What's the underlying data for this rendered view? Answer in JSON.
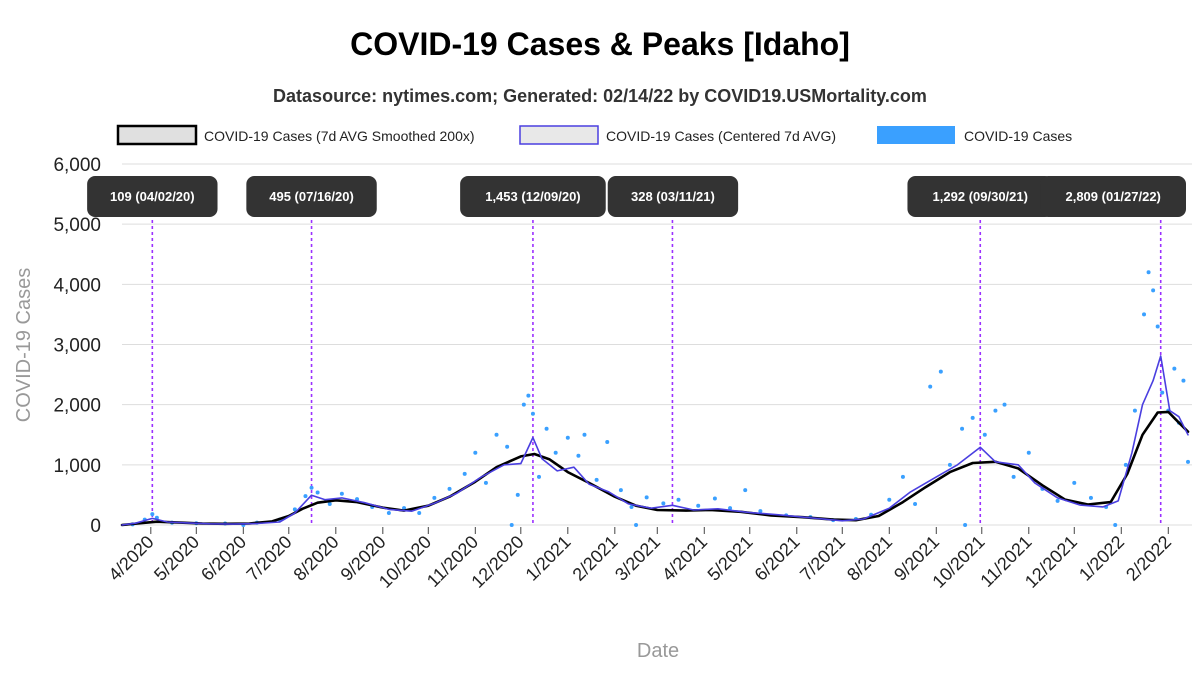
{
  "chart_data": {
    "type": "line",
    "title": "COVID-19 Cases & Peaks [Idaho]",
    "subtitle": "Datasource: nytimes.com; Generated: 02/14/22 by COVID19.USMortality.com",
    "xlabel": "Date",
    "ylabel": "COVID-19 Cases",
    "ylim": [
      0,
      6000
    ],
    "yticks": [
      "0",
      "1,000",
      "2,000",
      "3,000",
      "4,000",
      "5,000",
      "6,000"
    ],
    "xlim": [
      "2020-03-13",
      "2022-02-14"
    ],
    "xticks": [
      {
        "date": "2020-04-01",
        "label": "4/2020"
      },
      {
        "date": "2020-05-01",
        "label": "5/2020"
      },
      {
        "date": "2020-06-01",
        "label": "6/2020"
      },
      {
        "date": "2020-07-01",
        "label": "7/2020"
      },
      {
        "date": "2020-08-01",
        "label": "8/2020"
      },
      {
        "date": "2020-09-01",
        "label": "9/2020"
      },
      {
        "date": "2020-10-01",
        "label": "10/2020"
      },
      {
        "date": "2020-11-01",
        "label": "11/2020"
      },
      {
        "date": "2020-12-01",
        "label": "12/2020"
      },
      {
        "date": "2021-01-01",
        "label": "1/2021"
      },
      {
        "date": "2021-02-01",
        "label": "2/2021"
      },
      {
        "date": "2021-03-01",
        "label": "3/2021"
      },
      {
        "date": "2021-04-01",
        "label": "4/2021"
      },
      {
        "date": "2021-05-01",
        "label": "5/2021"
      },
      {
        "date": "2021-06-01",
        "label": "6/2021"
      },
      {
        "date": "2021-07-01",
        "label": "7/2021"
      },
      {
        "date": "2021-08-01",
        "label": "8/2021"
      },
      {
        "date": "2021-09-01",
        "label": "9/2021"
      },
      {
        "date": "2021-10-01",
        "label": "10/2021"
      },
      {
        "date": "2021-11-01",
        "label": "11/2021"
      },
      {
        "date": "2021-12-01",
        "label": "12/2021"
      },
      {
        "date": "2022-01-01",
        "label": "1/2022"
      },
      {
        "date": "2022-02-01",
        "label": "2/2022"
      }
    ],
    "grid": "horizontal",
    "legend": {
      "placement": "top",
      "entries": [
        {
          "label": "COVID-19 Cases (7d AVG Smoothed 200x)",
          "color": "#000000"
        },
        {
          "label": "COVID-19 Cases (Centered 7d AVG)",
          "color": "#4a3fe0"
        },
        {
          "label": "COVID-19 Cases",
          "color": "#3aa0ff"
        }
      ]
    },
    "peaks": [
      {
        "date": "2020-04-02",
        "label": "109 (04/02/20)"
      },
      {
        "date": "2020-07-16",
        "label": "495 (07/16/20)"
      },
      {
        "date": "2020-12-09",
        "label": "1,453 (12/09/20)"
      },
      {
        "date": "2021-03-11",
        "label": "328 (03/11/21)"
      },
      {
        "date": "2021-09-30",
        "label": "1,292 (09/30/21)"
      },
      {
        "date": "2022-01-27",
        "label": "2,809 (01/27/22)"
      }
    ],
    "series": [
      {
        "key": "smoothed",
        "style": "line",
        "color": "#000000",
        "points": [
          [
            "2020-03-13",
            0
          ],
          [
            "2020-03-25",
            30
          ],
          [
            "2020-04-05",
            55
          ],
          [
            "2020-04-20",
            40
          ],
          [
            "2020-05-05",
            25
          ],
          [
            "2020-05-20",
            20
          ],
          [
            "2020-06-05",
            25
          ],
          [
            "2020-06-20",
            60
          ],
          [
            "2020-07-01",
            150
          ],
          [
            "2020-07-10",
            270
          ],
          [
            "2020-07-20",
            370
          ],
          [
            "2020-08-01",
            410
          ],
          [
            "2020-08-15",
            380
          ],
          [
            "2020-09-01",
            290
          ],
          [
            "2020-09-15",
            240
          ],
          [
            "2020-10-01",
            320
          ],
          [
            "2020-10-15",
            470
          ],
          [
            "2020-11-01",
            720
          ],
          [
            "2020-11-15",
            960
          ],
          [
            "2020-12-01",
            1140
          ],
          [
            "2020-12-10",
            1180
          ],
          [
            "2020-12-20",
            1090
          ],
          [
            "2021-01-01",
            880
          ],
          [
            "2021-01-15",
            700
          ],
          [
            "2021-02-01",
            470
          ],
          [
            "2021-02-15",
            320
          ],
          [
            "2021-03-01",
            250
          ],
          [
            "2021-03-20",
            240
          ],
          [
            "2021-04-05",
            250
          ],
          [
            "2021-04-25",
            220
          ],
          [
            "2021-05-15",
            160
          ],
          [
            "2021-06-05",
            130
          ],
          [
            "2021-06-25",
            90
          ],
          [
            "2021-07-10",
            80
          ],
          [
            "2021-07-25",
            150
          ],
          [
            "2021-08-10",
            380
          ],
          [
            "2021-08-25",
            630
          ],
          [
            "2021-09-10",
            880
          ],
          [
            "2021-09-25",
            1030
          ],
          [
            "2021-10-10",
            1050
          ],
          [
            "2021-10-25",
            940
          ],
          [
            "2021-11-10",
            660
          ],
          [
            "2021-11-25",
            420
          ],
          [
            "2021-12-10",
            340
          ],
          [
            "2021-12-25",
            380
          ],
          [
            "2022-01-05",
            850
          ],
          [
            "2022-01-15",
            1500
          ],
          [
            "2022-01-25",
            1870
          ],
          [
            "2022-02-01",
            1880
          ],
          [
            "2022-02-08",
            1700
          ],
          [
            "2022-02-14",
            1550
          ]
        ]
      },
      {
        "key": "centered7d",
        "style": "line",
        "color": "#4a3fe0",
        "points": [
          [
            "2020-03-13",
            0
          ],
          [
            "2020-03-22",
            30
          ],
          [
            "2020-04-02",
            109
          ],
          [
            "2020-04-12",
            50
          ],
          [
            "2020-04-25",
            35
          ],
          [
            "2020-05-10",
            20
          ],
          [
            "2020-05-25",
            15
          ],
          [
            "2020-06-10",
            25
          ],
          [
            "2020-06-25",
            50
          ],
          [
            "2020-07-05",
            200
          ],
          [
            "2020-07-16",
            495
          ],
          [
            "2020-07-25",
            420
          ],
          [
            "2020-08-05",
            450
          ],
          [
            "2020-08-20",
            370
          ],
          [
            "2020-09-05",
            260
          ],
          [
            "2020-09-20",
            230
          ],
          [
            "2020-10-05",
            360
          ],
          [
            "2020-10-20",
            530
          ],
          [
            "2020-11-05",
            800
          ],
          [
            "2020-11-20",
            1000
          ],
          [
            "2020-12-01",
            1020
          ],
          [
            "2020-12-09",
            1453
          ],
          [
            "2020-12-15",
            1100
          ],
          [
            "2020-12-25",
            900
          ],
          [
            "2021-01-05",
            960
          ],
          [
            "2021-01-15",
            680
          ],
          [
            "2021-01-28",
            550
          ],
          [
            "2021-02-10",
            350
          ],
          [
            "2021-02-25",
            280
          ],
          [
            "2021-03-11",
            328
          ],
          [
            "2021-03-25",
            250
          ],
          [
            "2021-04-10",
            270
          ],
          [
            "2021-04-30",
            210
          ],
          [
            "2021-05-20",
            170
          ],
          [
            "2021-06-10",
            120
          ],
          [
            "2021-07-01",
            70
          ],
          [
            "2021-07-15",
            100
          ],
          [
            "2021-08-01",
            280
          ],
          [
            "2021-08-15",
            550
          ],
          [
            "2021-09-01",
            800
          ],
          [
            "2021-09-15",
            1000
          ],
          [
            "2021-09-30",
            1292
          ],
          [
            "2021-10-10",
            1050
          ],
          [
            "2021-10-25",
            1000
          ],
          [
            "2021-11-05",
            700
          ],
          [
            "2021-11-20",
            450
          ],
          [
            "2021-12-05",
            330
          ],
          [
            "2021-12-20",
            300
          ],
          [
            "2021-12-30",
            400
          ],
          [
            "2022-01-08",
            1200
          ],
          [
            "2022-01-15",
            2000
          ],
          [
            "2022-01-22",
            2400
          ],
          [
            "2022-01-27",
            2809
          ],
          [
            "2022-02-02",
            1900
          ],
          [
            "2022-02-08",
            1800
          ],
          [
            "2022-02-14",
            1500
          ]
        ]
      },
      {
        "key": "daily",
        "style": "scatter",
        "color": "#3aa0ff",
        "points": [
          [
            "2020-03-20",
            10
          ],
          [
            "2020-03-28",
            90
          ],
          [
            "2020-04-02",
            180
          ],
          [
            "2020-04-05",
            120
          ],
          [
            "2020-04-15",
            40
          ],
          [
            "2020-05-01",
            30
          ],
          [
            "2020-05-20",
            25
          ],
          [
            "2020-06-10",
            40
          ],
          [
            "2020-06-25",
            90
          ],
          [
            "2020-07-05",
            260
          ],
          [
            "2020-07-12",
            480
          ],
          [
            "2020-07-16",
            620
          ],
          [
            "2020-07-20",
            540
          ],
          [
            "2020-07-28",
            350
          ],
          [
            "2020-08-05",
            520
          ],
          [
            "2020-08-15",
            430
          ],
          [
            "2020-08-25",
            300
          ],
          [
            "2020-09-05",
            200
          ],
          [
            "2020-09-15",
            280
          ],
          [
            "2020-09-25",
            200
          ],
          [
            "2020-10-05",
            450
          ],
          [
            "2020-10-15",
            600
          ],
          [
            "2020-10-25",
            850
          ],
          [
            "2020-11-01",
            1200
          ],
          [
            "2020-11-08",
            700
          ],
          [
            "2020-11-15",
            1500
          ],
          [
            "2020-11-22",
            1300
          ],
          [
            "2020-11-29",
            500
          ],
          [
            "2020-12-03",
            2000
          ],
          [
            "2020-12-06",
            2150
          ],
          [
            "2020-12-09",
            1850
          ],
          [
            "2020-12-13",
            800
          ],
          [
            "2020-12-18",
            1600
          ],
          [
            "2020-12-24",
            1200
          ],
          [
            "2021-01-01",
            1450
          ],
          [
            "2021-01-08",
            1150
          ],
          [
            "2021-01-12",
            1500
          ],
          [
            "2021-01-20",
            750
          ],
          [
            "2021-01-27",
            1380
          ],
          [
            "2021-02-05",
            580
          ],
          [
            "2021-02-12",
            300
          ],
          [
            "2021-02-22",
            460
          ],
          [
            "2021-03-05",
            360
          ],
          [
            "2021-03-15",
            420
          ],
          [
            "2021-03-28",
            320
          ],
          [
            "2021-04-08",
            440
          ],
          [
            "2021-04-18",
            280
          ],
          [
            "2021-04-28",
            580
          ],
          [
            "2021-05-08",
            230
          ],
          [
            "2021-05-25",
            160
          ],
          [
            "2021-06-10",
            130
          ],
          [
            "2021-06-25",
            80
          ],
          [
            "2021-07-10",
            100
          ],
          [
            "2021-07-20",
            170
          ],
          [
            "2021-08-01",
            420
          ],
          [
            "2021-08-10",
            800
          ],
          [
            "2021-08-18",
            350
          ],
          [
            "2021-08-28",
            2300
          ],
          [
            "2021-09-04",
            2550
          ],
          [
            "2021-09-10",
            1000
          ],
          [
            "2021-09-18",
            1600
          ],
          [
            "2021-09-25",
            1780
          ],
          [
            "2021-10-03",
            1500
          ],
          [
            "2021-10-10",
            1900
          ],
          [
            "2021-10-16",
            2000
          ],
          [
            "2021-10-22",
            800
          ],
          [
            "2021-11-01",
            1200
          ],
          [
            "2021-11-10",
            600
          ],
          [
            "2021-11-20",
            400
          ],
          [
            "2021-12-01",
            700
          ],
          [
            "2021-12-12",
            450
          ],
          [
            "2021-12-22",
            300
          ],
          [
            "2022-01-04",
            1000
          ],
          [
            "2022-01-10",
            1900
          ],
          [
            "2022-01-16",
            3500
          ],
          [
            "2022-01-19",
            4200
          ],
          [
            "2022-01-22",
            3900
          ],
          [
            "2022-01-25",
            3300
          ],
          [
            "2022-01-28",
            2200
          ],
          [
            "2022-02-01",
            1900
          ],
          [
            "2022-02-05",
            2600
          ],
          [
            "2022-02-08",
            1700
          ],
          [
            "2022-02-11",
            2400
          ],
          [
            "2022-02-14",
            1050
          ],
          [
            "2020-06-01",
            0
          ],
          [
            "2020-11-25",
            0
          ],
          [
            "2021-02-15",
            0
          ],
          [
            "2021-09-20",
            0
          ],
          [
            "2021-12-28",
            0
          ]
        ]
      }
    ]
  }
}
